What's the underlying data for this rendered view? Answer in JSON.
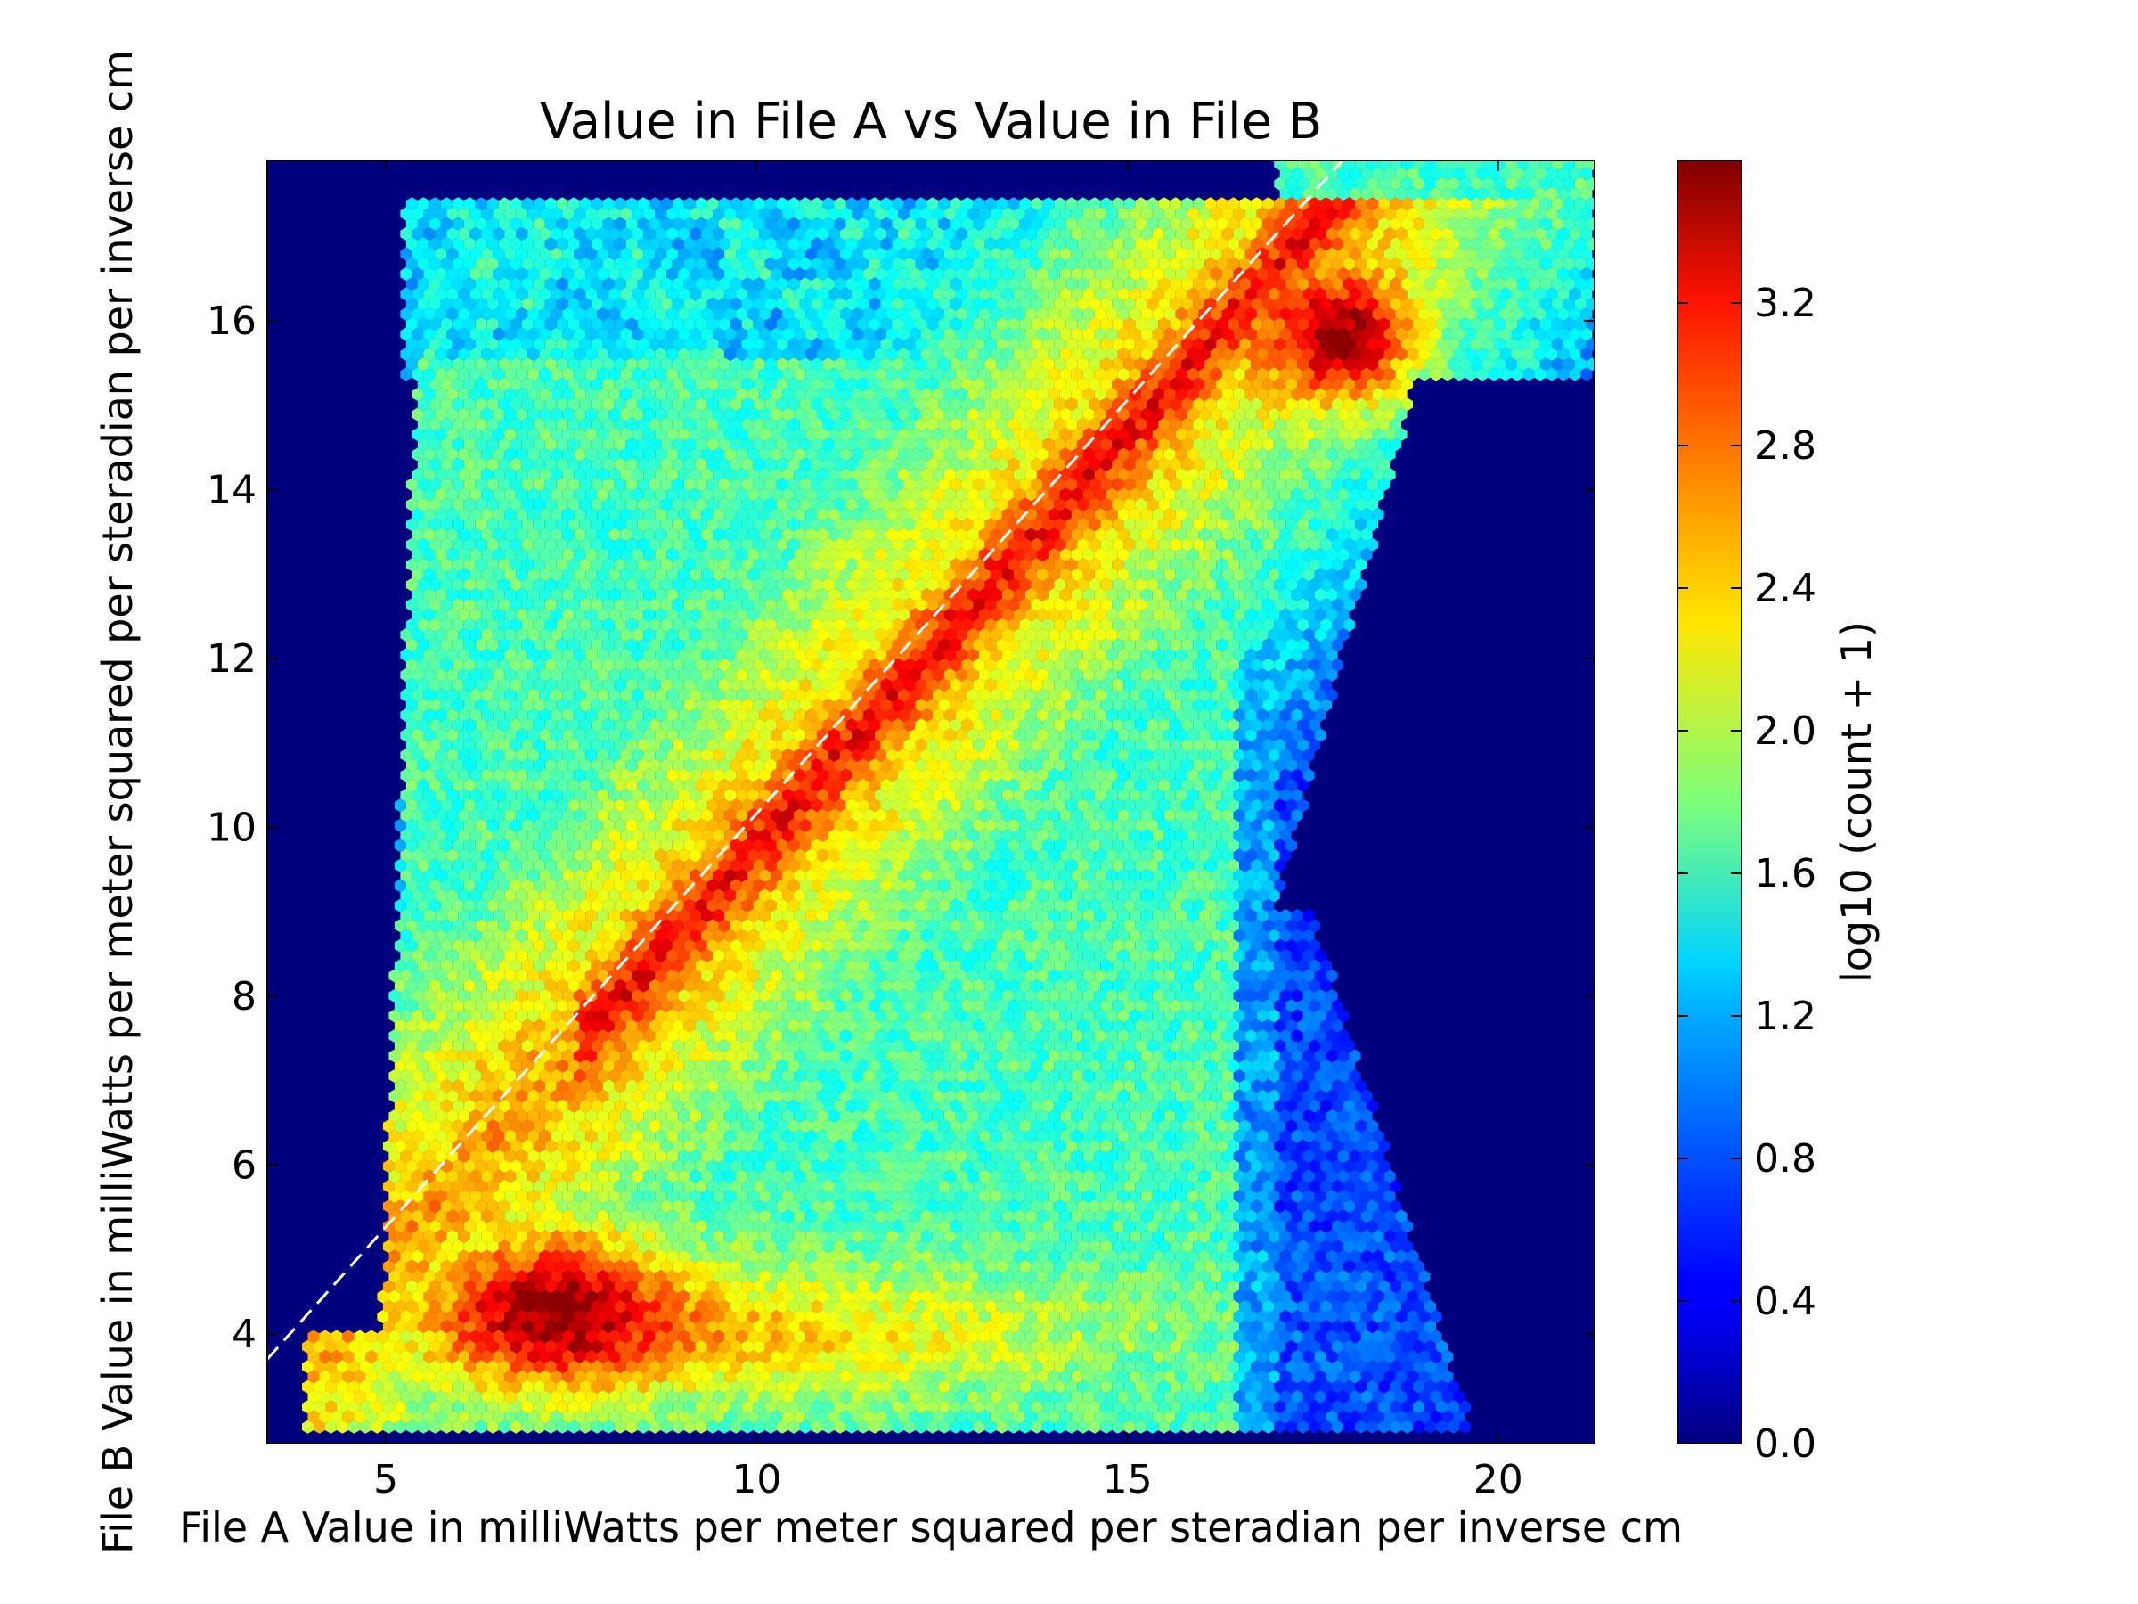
{
  "chart_data": {
    "type": "hexbin",
    "title": "Value in File A vs Value in File B",
    "xlabel": "File A Value in milliWatts per meter squared per steradian per inverse cm",
    "ylabel": "File B Value in milliWatts per meter squared per steradian per inverse cm",
    "xlim": [
      3.4,
      21.3
    ],
    "ylim": [
      2.7,
      17.9
    ],
    "xticks": [
      5,
      10,
      15,
      20
    ],
    "xtick_labels": [
      "5",
      "10",
      "15",
      "20"
    ],
    "yticks": [
      4,
      6,
      8,
      10,
      12,
      14,
      16
    ],
    "ytick_labels": [
      "4",
      "6",
      "8",
      "10",
      "12",
      "14",
      "16"
    ],
    "reference_line": {
      "style": "dashed",
      "color": "#ffffff",
      "x": [
        3.4,
        17.9
      ],
      "y": [
        3.7,
        17.9
      ]
    },
    "colorbar": {
      "label": "log10 (count + 1)",
      "range": [
        0.0,
        3.6
      ],
      "ticks": [
        0.0,
        0.4,
        0.8,
        1.2,
        1.6,
        2.0,
        2.4,
        2.8,
        3.2
      ],
      "tick_labels": [
        "0.0",
        "0.4",
        "0.8",
        "1.2",
        "1.6",
        "2.0",
        "2.4",
        "2.8",
        "3.2"
      ],
      "colormap": "jet"
    },
    "background_color": "#00007f",
    "density_regions": [
      {
        "region": "low-band",
        "x": [
          4.5,
          17.0
        ],
        "y": [
          4.0,
          3.0
        ],
        "level": 2.0
      },
      {
        "region": "lower-left-peak",
        "x": [
          7.0,
          8.5
        ],
        "y": [
          4.2,
          5.2
        ],
        "level": 3.0
      },
      {
        "region": "diagonal-ridge",
        "x": [
          8.0,
          18.0
        ],
        "y": [
          8.0,
          16.0
        ],
        "level": 3.3
      },
      {
        "region": "upper-right-peak",
        "x": [
          17.5,
          18.5
        ],
        "y": [
          15.6,
          16.3
        ],
        "level": 3.5
      },
      {
        "region": "top-band",
        "x": [
          5.5,
          19.5
        ],
        "y": [
          17.0,
          17.2
        ],
        "level": 1.2
      }
    ]
  }
}
